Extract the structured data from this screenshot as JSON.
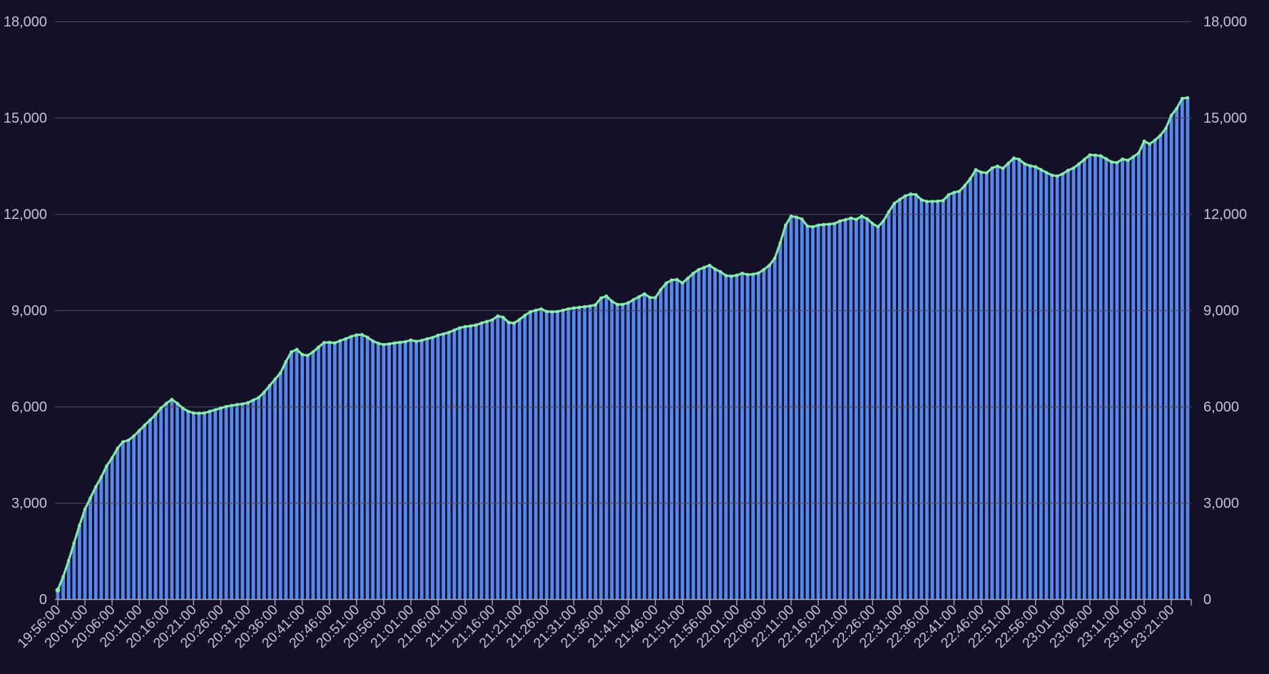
{
  "chart_data": {
    "type": "bar",
    "title": "",
    "xlabel": "",
    "ylabel": "",
    "x_start": "19:56:00",
    "x_interval_minutes": 1,
    "x_label_every": 5,
    "x_tick_labels": [
      "19:56:00",
      "20:01:00",
      "20:06:00",
      "20:11:00",
      "20:16:00",
      "20:21:00",
      "20:26:00",
      "20:31:00",
      "20:36:00",
      "20:41:00",
      "20:46:00",
      "20:51:00",
      "20:56:00",
      "21:01:00",
      "21:06:00",
      "21:11:00",
      "21:16:00",
      "21:21:00",
      "21:26:00",
      "21:31:00",
      "21:36:00",
      "21:41:00",
      "21:46:00",
      "21:51:00",
      "21:56:00",
      "22:01:00",
      "22:06:00",
      "22:11:00",
      "22:16:00",
      "22:21:00",
      "22:26:00",
      "22:31:00",
      "22:36:00",
      "22:41:00",
      "22:46:00",
      "22:51:00",
      "22:56:00",
      "23:01:00",
      "23:06:00",
      "23:11:00",
      "23:16:00",
      "23:21:00"
    ],
    "ylim": [
      0,
      18000
    ],
    "y_tick_step": 3000,
    "y_tick_labels": [
      "0",
      "3,000",
      "6,000",
      "9,000",
      "12,000",
      "15,000",
      "18,000"
    ],
    "y_axis_sides": [
      "left",
      "right"
    ],
    "grid": true,
    "legend": false,
    "series": [
      {
        "name": "value",
        "render": "bars-with-line-and-points",
        "values": [
          280,
          700,
          1200,
          1750,
          2300,
          2800,
          3150,
          3500,
          3800,
          4150,
          4400,
          4700,
          4900,
          4950,
          5080,
          5250,
          5420,
          5580,
          5750,
          5950,
          6100,
          6220,
          6100,
          5950,
          5850,
          5800,
          5790,
          5800,
          5850,
          5900,
          5950,
          6000,
          6030,
          6060,
          6080,
          6120,
          6200,
          6280,
          6450,
          6650,
          6850,
          7050,
          7400,
          7700,
          7780,
          7620,
          7590,
          7700,
          7850,
          7990,
          8000,
          7980,
          8050,
          8110,
          8180,
          8230,
          8240,
          8160,
          8040,
          7970,
          7930,
          7950,
          7980,
          8000,
          8020,
          8070,
          8030,
          8060,
          8110,
          8150,
          8220,
          8260,
          8310,
          8380,
          8450,
          8490,
          8510,
          8540,
          8600,
          8650,
          8700,
          8820,
          8780,
          8620,
          8600,
          8710,
          8840,
          8950,
          9000,
          9040,
          8960,
          8950,
          8960,
          9000,
          9040,
          9070,
          9090,
          9110,
          9130,
          9170,
          9380,
          9444,
          9280,
          9180,
          9180,
          9230,
          9330,
          9420,
          9510,
          9400,
          9390,
          9640,
          9844,
          9940,
          9956,
          9850,
          10000,
          10150,
          10267,
          10333,
          10400,
          10280,
          10200,
          10080,
          10060,
          10090,
          10150,
          10110,
          10120,
          10160,
          10270,
          10400,
          10620,
          11100,
          11650,
          11930,
          11900,
          11840,
          11620,
          11600,
          11650,
          11670,
          11680,
          11700,
          11780,
          11820,
          11870,
          11830,
          11930,
          11850,
          11700,
          11600,
          11780,
          12070,
          12330,
          12450,
          12560,
          12620,
          12600,
          12440,
          12390,
          12390,
          12400,
          12420,
          12600,
          12670,
          12710,
          12890,
          13100,
          13380,
          13300,
          13280,
          13430,
          13490,
          13420,
          13580,
          13740,
          13700,
          13560,
          13500,
          13470,
          13380,
          13290,
          13210,
          13180,
          13250,
          13360,
          13430,
          13560,
          13700,
          13840,
          13830,
          13810,
          13720,
          13620,
          13600,
          13710,
          13670,
          13780,
          13900,
          14270,
          14180,
          14300,
          14450,
          14670,
          15070,
          15290,
          15600,
          15620
        ]
      }
    ],
    "colors": {
      "background": "#141028",
      "bar_fill": "#5687ec",
      "line": "#7eeaa5",
      "point": "#86efac",
      "gridline": "#4b4760",
      "axis_line": "#a9a5bc",
      "tick": "#a9a5bc",
      "label_text": "#c5c1d6"
    }
  }
}
